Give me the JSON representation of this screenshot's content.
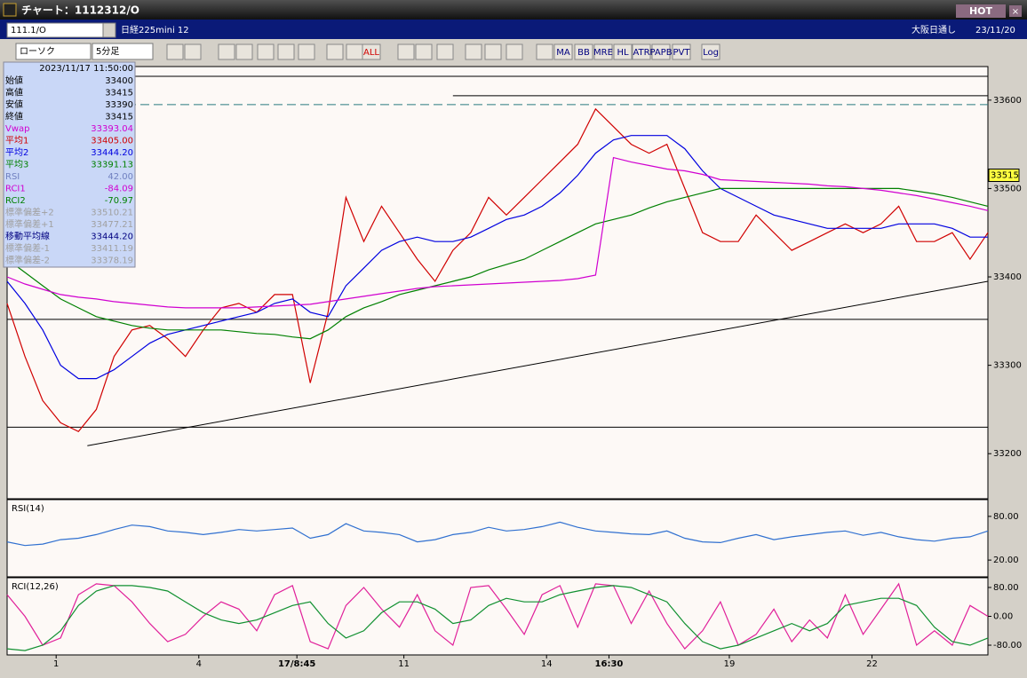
{
  "window": {
    "title": "チャート：1112312/O",
    "hot": "HOT"
  },
  "header": {
    "symbol": "111.1/O",
    "name": "日経225mini 12",
    "market": "大阪日通し",
    "date": "23/11/20"
  },
  "toolbar": {
    "style": "ローソク",
    "period": "5分足",
    "buttons": [
      "ALL",
      "MA",
      "BB",
      "MRE",
      "HL",
      "ATR",
      "PAPB",
      "PVT",
      "Log"
    ]
  },
  "info": {
    "datetime": "2023/11/17  11:50:00",
    "rows": [
      {
        "label": "始値",
        "value": "33400",
        "color": "#000000"
      },
      {
        "label": "高値",
        "value": "33415",
        "color": "#000000"
      },
      {
        "label": "安値",
        "value": "33390",
        "color": "#000000"
      },
      {
        "label": "終値",
        "value": "33415",
        "color": "#000000"
      },
      {
        "label": "Vwap",
        "value": "33393.04",
        "color": "#d000d0"
      },
      {
        "label": "平均1",
        "value": "33405.00",
        "color": "#d00000"
      },
      {
        "label": "平均2",
        "value": "33444.20",
        "color": "#0000e0"
      },
      {
        "label": "平均3",
        "value": "33391.13",
        "color": "#008000"
      },
      {
        "label": "RSI",
        "value": "42.00",
        "color": "#7080c0"
      },
      {
        "label": "RCI1",
        "value": "-84.09",
        "color": "#d000d0"
      },
      {
        "label": "RCI2",
        "value": "-70.97",
        "color": "#008000"
      },
      {
        "label": "標準偏差+2",
        "value": "33510.21",
        "color": "#a0a0a0"
      },
      {
        "label": "標準偏差+1",
        "value": "33477.21",
        "color": "#a0a0a0"
      },
      {
        "label": "移動平均線",
        "value": "33444.20",
        "color": "#000080"
      },
      {
        "label": "標準偏差-1",
        "value": "33411.19",
        "color": "#a0a0a0"
      },
      {
        "label": "標準偏差-2",
        "value": "33378.19",
        "color": "#a0a0a0"
      }
    ]
  },
  "chart_data": [
    {
      "type": "line",
      "x": [
        0,
        4,
        8,
        12,
        16,
        20,
        24,
        28,
        32,
        36,
        40,
        44,
        48,
        52,
        56,
        60,
        64,
        68,
        72,
        76,
        80,
        84,
        88,
        92,
        96,
        100,
        104,
        108,
        112,
        116,
        120,
        124,
        128,
        132,
        136,
        140,
        144,
        148,
        152,
        156,
        160,
        164,
        168,
        172,
        176,
        180,
        184,
        188,
        192,
        196,
        200,
        204,
        208,
        212,
        216,
        220
      ],
      "xlim": [
        0,
        220
      ],
      "xticks": [
        {
          "value": 11,
          "label": "1"
        },
        {
          "value": 43,
          "label": "4"
        },
        {
          "value": 65,
          "label": "17/8:45"
        },
        {
          "value": 89,
          "label": "11"
        },
        {
          "value": 121,
          "label": "14"
        },
        {
          "value": 135,
          "label": "16:30"
        },
        {
          "value": 162,
          "label": "19"
        },
        {
          "value": 194,
          "label": "22"
        }
      ],
      "ylim": [
        33149,
        33638
      ],
      "yticks": [
        33200,
        33300,
        33400,
        33500,
        33600
      ],
      "last_value": 33515,
      "series": [
        {
          "color": "#d00000",
          "values": [
            33370,
            33310,
            33260,
            33235,
            33225,
            33250,
            33310,
            33340,
            33345,
            33330,
            33310,
            33340,
            33365,
            33370,
            33360,
            33380,
            33380,
            33280,
            33360,
            33490,
            33440,
            33480,
            33450,
            33420,
            33395,
            33430,
            33450,
            33490,
            33470,
            33490,
            33510,
            33530,
            33550,
            33590,
            33570,
            33550,
            33540,
            33550,
            33500,
            33450,
            33440,
            33440,
            33470,
            33450,
            33430,
            33440,
            33450,
            33460,
            33450,
            33460,
            33480,
            33440,
            33440,
            33450,
            33420,
            33450
          ]
        },
        {
          "color": "#0000e0",
          "values": [
            33395,
            33370,
            33340,
            33300,
            33285,
            33285,
            33295,
            33310,
            33325,
            33335,
            33340,
            33345,
            33350,
            33355,
            33360,
            33370,
            33375,
            33360,
            33355,
            33390,
            33410,
            33430,
            33440,
            33445,
            33440,
            33440,
            33445,
            33455,
            33465,
            33470,
            33480,
            33495,
            33515,
            33540,
            33555,
            33560,
            33560,
            33560,
            33545,
            33520,
            33500,
            33490,
            33480,
            33470,
            33465,
            33460,
            33455,
            33455,
            33455,
            33455,
            33460,
            33460,
            33460,
            33455,
            33445,
            33445
          ]
        },
        {
          "color": "#008000",
          "values": [
            33420,
            33405,
            33390,
            33375,
            33365,
            33355,
            33350,
            33345,
            33342,
            33340,
            33340,
            33340,
            33340,
            33338,
            33336,
            33335,
            33332,
            33330,
            33340,
            33355,
            33365,
            33372,
            33380,
            33385,
            33390,
            33395,
            33400,
            33408,
            33414,
            33420,
            33430,
            33440,
            33450,
            33460,
            33465,
            33470,
            33478,
            33485,
            33490,
            33495,
            33500,
            33500,
            33500,
            33500,
            33500,
            33500,
            33500,
            33500,
            33500,
            33500,
            33500,
            33497,
            33494,
            33490,
            33485,
            33480
          ]
        },
        {
          "color": "#d000d0",
          "values": [
            33400,
            33392,
            33386,
            33380,
            33377,
            33375,
            33372,
            33370,
            33368,
            33366,
            33365,
            33365,
            33365,
            33365,
            33366,
            33367,
            33368,
            33369,
            33372,
            33375,
            33378,
            33381,
            33384,
            33387,
            33389,
            33390,
            33391,
            33392,
            33393,
            33394,
            33395,
            33396,
            33398,
            33402,
            33535,
            33530,
            33526,
            33522,
            33520,
            33516,
            33510,
            33509,
            33508,
            33507,
            33506,
            33505,
            33503,
            33502,
            33500,
            33498,
            33495,
            33492,
            33488,
            33484,
            33480,
            33475
          ]
        }
      ],
      "hlines": [
        {
          "value": 33627,
          "style": "solid",
          "from": 0
        },
        {
          "value": 33605,
          "style": "solid",
          "from": 100
        },
        {
          "value": 33595,
          "style": "dashed",
          "from": 0
        },
        {
          "value": 33352,
          "style": "solid",
          "from": 0
        },
        {
          "value": 33230,
          "style": "solid",
          "from": 0
        }
      ],
      "trend": {
        "x": [
          18,
          220
        ],
        "y": [
          33209,
          33395
        ]
      }
    },
    {
      "type": "line",
      "title": "RSI(14)",
      "ylim": [
        -3,
        103
      ],
      "yticks": [
        {
          "value": 20,
          "label": "20.00"
        },
        {
          "value": 80,
          "label": "80.00"
        }
      ],
      "series": [
        {
          "color": "#3070d0",
          "values": [
            45,
            40,
            42,
            48,
            50,
            55,
            62,
            68,
            66,
            60,
            58,
            55,
            58,
            62,
            60,
            62,
            64,
            50,
            55,
            70,
            60,
            58,
            55,
            45,
            48,
            55,
            58,
            65,
            60,
            62,
            66,
            72,
            65,
            60,
            58,
            56,
            55,
            60,
            50,
            45,
            44,
            50,
            55,
            48,
            52,
            55,
            58,
            60,
            54,
            58,
            52,
            48,
            46,
            50,
            52,
            60
          ]
        }
      ]
    },
    {
      "type": "line",
      "title": "RCI(12,26)",
      "ylim": [
        -107,
        107
      ],
      "yticks": [
        {
          "value": 80,
          "label": "80.00"
        },
        {
          "value": 0,
          "label": "0.00"
        },
        {
          "value": -80,
          "label": "-80.00"
        }
      ],
      "series": [
        {
          "color": "#e0209a",
          "values": [
            60,
            0,
            -80,
            -60,
            60,
            90,
            85,
            40,
            -20,
            -70,
            -50,
            0,
            40,
            20,
            -40,
            60,
            85,
            -70,
            -90,
            30,
            80,
            20,
            -30,
            60,
            -40,
            -80,
            80,
            85,
            20,
            -50,
            60,
            85,
            -30,
            90,
            85,
            -20,
            70,
            -20,
            -90,
            -40,
            40,
            -80,
            -50,
            20,
            -70,
            -10,
            -60,
            60,
            -50,
            20,
            90,
            -80,
            -40,
            -80,
            30,
            0
          ]
        },
        {
          "color": "#109030",
          "values": [
            -90,
            -95,
            -80,
            -40,
            30,
            70,
            85,
            85,
            80,
            70,
            40,
            10,
            -10,
            -20,
            -10,
            10,
            30,
            40,
            -20,
            -60,
            -40,
            10,
            40,
            40,
            20,
            -20,
            -10,
            30,
            50,
            40,
            40,
            60,
            70,
            80,
            85,
            80,
            60,
            40,
            -20,
            -70,
            -90,
            -80,
            -60,
            -40,
            -20,
            -40,
            -20,
            30,
            40,
            50,
            50,
            30,
            -30,
            -70,
            -80,
            -60
          ]
        }
      ]
    }
  ]
}
